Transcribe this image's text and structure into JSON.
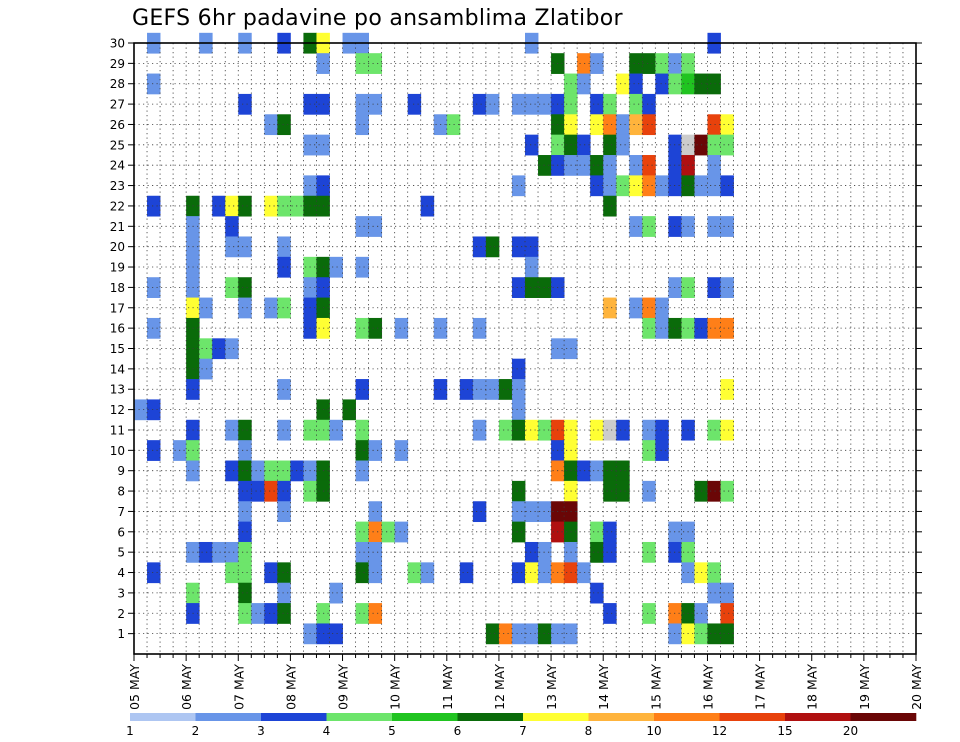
{
  "chart_data": {
    "type": "heatmap",
    "title": "GEFS 6hr padavine po ansamblima Zlatibor",
    "xlabel": "",
    "ylabel": "",
    "x_ticks": [
      "05 MAY",
      "06 MAY",
      "07 MAY",
      "08 MAY",
      "09 MAY",
      "10 MAY",
      "11 MAY",
      "12 MAY",
      "13 MAY",
      "14 MAY",
      "15 MAY",
      "16 MAY",
      "17 MAY",
      "18 MAY",
      "19 MAY",
      "20 MAY"
    ],
    "y_ticks": [
      1,
      2,
      3,
      4,
      5,
      6,
      7,
      8,
      9,
      10,
      11,
      12,
      13,
      14,
      15,
      16,
      17,
      18,
      19,
      20,
      21,
      22,
      23,
      24,
      25,
      26,
      27,
      28,
      29,
      30
    ],
    "ylim": [
      0,
      30
    ],
    "steps_per_day": 4,
    "grid": "dotted",
    "colorbar": {
      "position": "bottom",
      "labels": [
        "1",
        "2",
        "3",
        "4",
        "5",
        "6",
        "7",
        "8",
        "10",
        "12",
        "15",
        "20"
      ],
      "colors": [
        "#aec6f2",
        "#6895e8",
        "#1d44d6",
        "#6de56b",
        "#20c420",
        "#0a6b0a",
        "#ffff33",
        "#ffb43c",
        "#ff7f18",
        "#e8420c",
        "#b01010",
        "#6a0606"
      ]
    },
    "cells": [
      [
        1,
        30,
        1
      ],
      [
        5,
        30,
        1
      ],
      [
        8,
        30,
        1
      ],
      [
        11,
        30,
        2
      ],
      [
        13,
        30,
        5
      ],
      [
        14,
        30,
        6
      ],
      [
        16,
        30,
        1
      ],
      [
        17,
        30,
        1
      ],
      [
        30,
        30,
        1
      ],
      [
        44,
        30,
        2
      ],
      [
        14,
        29,
        1
      ],
      [
        17,
        29,
        3
      ],
      [
        18,
        29,
        3
      ],
      [
        32,
        29,
        5
      ],
      [
        34,
        29,
        8
      ],
      [
        35,
        29,
        1
      ],
      [
        38,
        29,
        5
      ],
      [
        39,
        29,
        5
      ],
      [
        40,
        29,
        3
      ],
      [
        41,
        29,
        1
      ],
      [
        42,
        29,
        3
      ],
      [
        1,
        28,
        1
      ],
      [
        33,
        28,
        3
      ],
      [
        34,
        28,
        1
      ],
      [
        37,
        28,
        6
      ],
      [
        38,
        28,
        2
      ],
      [
        40,
        28,
        2
      ],
      [
        41,
        28,
        3
      ],
      [
        42,
        28,
        4
      ],
      [
        43,
        28,
        5
      ],
      [
        44,
        28,
        5
      ],
      [
        8,
        27,
        2
      ],
      [
        13,
        27,
        2
      ],
      [
        14,
        27,
        2
      ],
      [
        17,
        27,
        1
      ],
      [
        18,
        27,
        1
      ],
      [
        21,
        27,
        2
      ],
      [
        26,
        27,
        2
      ],
      [
        27,
        27,
        1
      ],
      [
        29,
        27,
        1
      ],
      [
        30,
        27,
        1
      ],
      [
        31,
        27,
        1
      ],
      [
        32,
        27,
        2
      ],
      [
        33,
        27,
        3
      ],
      [
        35,
        27,
        2
      ],
      [
        36,
        27,
        3
      ],
      [
        38,
        27,
        3
      ],
      [
        39,
        27,
        2
      ],
      [
        10,
        26,
        1
      ],
      [
        11,
        26,
        5
      ],
      [
        17,
        26,
        1
      ],
      [
        23,
        26,
        1
      ],
      [
        24,
        26,
        3
      ],
      [
        32,
        26,
        5
      ],
      [
        33,
        26,
        6
      ],
      [
        35,
        26,
        6
      ],
      [
        36,
        26,
        8
      ],
      [
        37,
        26,
        1
      ],
      [
        38,
        26,
        7
      ],
      [
        39,
        26,
        9
      ],
      [
        44,
        26,
        9
      ],
      [
        45,
        26,
        6
      ],
      [
        13,
        25,
        1
      ],
      [
        14,
        25,
        1
      ],
      [
        30,
        25,
        2
      ],
      [
        32,
        25,
        3
      ],
      [
        33,
        25,
        5
      ],
      [
        34,
        25,
        2
      ],
      [
        36,
        25,
        5
      ],
      [
        37,
        25,
        1
      ],
      [
        41,
        25,
        2
      ],
      [
        42,
        25,
        12
      ],
      [
        43,
        25,
        11
      ],
      [
        44,
        25,
        3
      ],
      [
        45,
        25,
        3
      ],
      [
        31,
        24,
        5
      ],
      [
        32,
        24,
        2
      ],
      [
        33,
        24,
        1
      ],
      [
        34,
        24,
        1
      ],
      [
        35,
        24,
        5
      ],
      [
        36,
        24,
        1
      ],
      [
        38,
        24,
        1
      ],
      [
        39,
        24,
        9
      ],
      [
        41,
        24,
        2
      ],
      [
        42,
        24,
        10
      ],
      [
        44,
        24,
        1
      ],
      [
        13,
        23,
        1
      ],
      [
        14,
        23,
        2
      ],
      [
        29,
        23,
        1
      ],
      [
        35,
        23,
        2
      ],
      [
        36,
        23,
        1
      ],
      [
        37,
        23,
        3
      ],
      [
        38,
        23,
        6
      ],
      [
        39,
        23,
        8
      ],
      [
        40,
        23,
        1
      ],
      [
        41,
        23,
        2
      ],
      [
        42,
        23,
        5
      ],
      [
        43,
        23,
        1
      ],
      [
        44,
        23,
        1
      ],
      [
        45,
        23,
        2
      ],
      [
        1,
        22,
        2
      ],
      [
        4,
        22,
        5
      ],
      [
        6,
        22,
        2
      ],
      [
        7,
        22,
        6
      ],
      [
        8,
        22,
        5
      ],
      [
        10,
        22,
        6
      ],
      [
        11,
        22,
        3
      ],
      [
        12,
        22,
        3
      ],
      [
        13,
        22,
        5
      ],
      [
        14,
        22,
        5
      ],
      [
        22,
        22,
        2
      ],
      [
        36,
        22,
        5
      ],
      [
        4,
        21,
        1
      ],
      [
        7,
        21,
        2
      ],
      [
        17,
        21,
        1
      ],
      [
        18,
        21,
        1
      ],
      [
        38,
        21,
        1
      ],
      [
        39,
        21,
        3
      ],
      [
        41,
        21,
        2
      ],
      [
        42,
        21,
        1
      ],
      [
        44,
        21,
        1
      ],
      [
        45,
        21,
        1
      ],
      [
        4,
        20,
        1
      ],
      [
        7,
        20,
        1
      ],
      [
        8,
        20,
        1
      ],
      [
        11,
        20,
        1
      ],
      [
        26,
        20,
        2
      ],
      [
        27,
        20,
        5
      ],
      [
        29,
        20,
        2
      ],
      [
        30,
        20,
        2
      ],
      [
        4,
        19,
        1
      ],
      [
        11,
        19,
        2
      ],
      [
        13,
        19,
        3
      ],
      [
        14,
        19,
        5
      ],
      [
        15,
        19,
        1
      ],
      [
        17,
        19,
        1
      ],
      [
        30,
        19,
        1
      ],
      [
        1,
        18,
        1
      ],
      [
        4,
        18,
        1
      ],
      [
        7,
        18,
        3
      ],
      [
        8,
        18,
        5
      ],
      [
        13,
        18,
        1
      ],
      [
        14,
        18,
        2
      ],
      [
        29,
        18,
        2
      ],
      [
        30,
        18,
        5
      ],
      [
        31,
        18,
        5
      ],
      [
        32,
        18,
        2
      ],
      [
        41,
        18,
        1
      ],
      [
        42,
        18,
        3
      ],
      [
        44,
        18,
        2
      ],
      [
        45,
        18,
        1
      ],
      [
        4,
        17,
        6
      ],
      [
        5,
        17,
        1
      ],
      [
        8,
        17,
        1
      ],
      [
        10,
        17,
        1
      ],
      [
        11,
        17,
        3
      ],
      [
        13,
        17,
        2
      ],
      [
        14,
        17,
        5
      ],
      [
        36,
        17,
        7
      ],
      [
        38,
        17,
        1
      ],
      [
        39,
        17,
        8
      ],
      [
        40,
        17,
        1
      ],
      [
        1,
        16,
        1
      ],
      [
        4,
        16,
        5
      ],
      [
        13,
        16,
        2
      ],
      [
        14,
        16,
        6
      ],
      [
        17,
        16,
        3
      ],
      [
        18,
        16,
        5
      ],
      [
        20,
        16,
        1
      ],
      [
        23,
        16,
        1
      ],
      [
        26,
        16,
        1
      ],
      [
        39,
        16,
        3
      ],
      [
        40,
        16,
        1
      ],
      [
        41,
        16,
        5
      ],
      [
        42,
        16,
        3
      ],
      [
        43,
        16,
        2
      ],
      [
        44,
        16,
        8
      ],
      [
        45,
        16,
        8
      ],
      [
        4,
        15,
        5
      ],
      [
        5,
        15,
        3
      ],
      [
        6,
        15,
        2
      ],
      [
        7,
        15,
        1
      ],
      [
        32,
        15,
        1
      ],
      [
        33,
        15,
        1
      ],
      [
        4,
        14,
        5
      ],
      [
        5,
        14,
        1
      ],
      [
        29,
        14,
        2
      ],
      [
        4,
        13,
        2
      ],
      [
        11,
        13,
        1
      ],
      [
        17,
        13,
        2
      ],
      [
        23,
        13,
        2
      ],
      [
        25,
        13,
        2
      ],
      [
        26,
        13,
        1
      ],
      [
        27,
        13,
        1
      ],
      [
        28,
        13,
        5
      ],
      [
        29,
        13,
        1
      ],
      [
        45,
        13,
        6
      ],
      [
        0,
        12,
        1
      ],
      [
        1,
        12,
        2
      ],
      [
        14,
        12,
        5
      ],
      [
        16,
        12,
        5
      ],
      [
        29,
        12,
        1
      ],
      [
        4,
        11,
        2
      ],
      [
        7,
        11,
        1
      ],
      [
        8,
        11,
        5
      ],
      [
        11,
        11,
        1
      ],
      [
        13,
        11,
        3
      ],
      [
        14,
        11,
        3
      ],
      [
        15,
        11,
        1
      ],
      [
        17,
        11,
        3
      ],
      [
        26,
        11,
        1
      ],
      [
        28,
        11,
        3
      ],
      [
        29,
        11,
        5
      ],
      [
        30,
        11,
        6
      ],
      [
        31,
        11,
        3
      ],
      [
        32,
        11,
        9
      ],
      [
        33,
        11,
        6
      ],
      [
        35,
        11,
        6
      ],
      [
        36,
        11,
        13
      ],
      [
        37,
        11,
        2
      ],
      [
        39,
        11,
        1
      ],
      [
        40,
        11,
        2
      ],
      [
        42,
        11,
        2
      ],
      [
        44,
        11,
        3
      ],
      [
        45,
        11,
        6
      ],
      [
        1,
        10,
        2
      ],
      [
        3,
        10,
        1
      ],
      [
        4,
        10,
        3
      ],
      [
        8,
        10,
        1
      ],
      [
        17,
        10,
        5
      ],
      [
        18,
        10,
        1
      ],
      [
        20,
        10,
        1
      ],
      [
        32,
        10,
        2
      ],
      [
        33,
        10,
        6
      ],
      [
        39,
        10,
        3
      ],
      [
        40,
        10,
        2
      ],
      [
        4,
        9,
        1
      ],
      [
        7,
        9,
        2
      ],
      [
        8,
        9,
        5
      ],
      [
        9,
        9,
        1
      ],
      [
        10,
        9,
        3
      ],
      [
        11,
        9,
        3
      ],
      [
        12,
        9,
        2
      ],
      [
        13,
        9,
        1
      ],
      [
        14,
        9,
        5
      ],
      [
        17,
        9,
        1
      ],
      [
        32,
        9,
        8
      ],
      [
        33,
        9,
        5
      ],
      [
        34,
        9,
        2
      ],
      [
        35,
        9,
        1
      ],
      [
        36,
        9,
        5
      ],
      [
        37,
        9,
        5
      ],
      [
        8,
        8,
        2
      ],
      [
        9,
        8,
        2
      ],
      [
        10,
        8,
        9
      ],
      [
        11,
        8,
        2
      ],
      [
        13,
        8,
        3
      ],
      [
        14,
        8,
        5
      ],
      [
        29,
        8,
        5
      ],
      [
        33,
        8,
        6
      ],
      [
        36,
        8,
        5
      ],
      [
        37,
        8,
        5
      ],
      [
        39,
        8,
        1
      ],
      [
        43,
        8,
        5
      ],
      [
        44,
        8,
        11
      ],
      [
        45,
        8,
        3
      ],
      [
        8,
        7,
        1
      ],
      [
        11,
        7,
        1
      ],
      [
        18,
        7,
        1
      ],
      [
        26,
        7,
        2
      ],
      [
        29,
        7,
        1
      ],
      [
        30,
        7,
        1
      ],
      [
        31,
        7,
        1
      ],
      [
        32,
        7,
        11
      ],
      [
        33,
        7,
        11
      ],
      [
        8,
        6,
        2
      ],
      [
        17,
        6,
        3
      ],
      [
        18,
        6,
        8
      ],
      [
        19,
        6,
        3
      ],
      [
        20,
        6,
        1
      ],
      [
        29,
        6,
        5
      ],
      [
        32,
        6,
        10
      ],
      [
        33,
        6,
        5
      ],
      [
        35,
        6,
        3
      ],
      [
        36,
        6,
        2
      ],
      [
        41,
        6,
        1
      ],
      [
        42,
        6,
        1
      ],
      [
        4,
        5,
        1
      ],
      [
        5,
        5,
        2
      ],
      [
        6,
        5,
        1
      ],
      [
        7,
        5,
        1
      ],
      [
        8,
        5,
        3
      ],
      [
        17,
        5,
        1
      ],
      [
        18,
        5,
        1
      ],
      [
        30,
        5,
        2
      ],
      [
        31,
        5,
        1
      ],
      [
        33,
        5,
        1
      ],
      [
        35,
        5,
        5
      ],
      [
        36,
        5,
        2
      ],
      [
        39,
        5,
        3
      ],
      [
        41,
        5,
        2
      ],
      [
        42,
        5,
        3
      ],
      [
        1,
        4,
        2
      ],
      [
        7,
        4,
        3
      ],
      [
        8,
        4,
        3
      ],
      [
        10,
        4,
        2
      ],
      [
        11,
        4,
        5
      ],
      [
        17,
        4,
        5
      ],
      [
        18,
        4,
        1
      ],
      [
        21,
        4,
        3
      ],
      [
        22,
        4,
        1
      ],
      [
        25,
        4,
        2
      ],
      [
        29,
        4,
        2
      ],
      [
        30,
        4,
        6
      ],
      [
        31,
        4,
        1
      ],
      [
        32,
        4,
        8
      ],
      [
        33,
        4,
        9
      ],
      [
        34,
        4,
        1
      ],
      [
        42,
        4,
        1
      ],
      [
        43,
        4,
        6
      ],
      [
        44,
        4,
        3
      ],
      [
        4,
        3,
        3
      ],
      [
        8,
        3,
        5
      ],
      [
        11,
        3,
        1
      ],
      [
        15,
        3,
        1
      ],
      [
        35,
        3,
        2
      ],
      [
        44,
        3,
        1
      ],
      [
        45,
        3,
        1
      ],
      [
        4,
        2,
        2
      ],
      [
        8,
        2,
        3
      ],
      [
        9,
        2,
        1
      ],
      [
        10,
        2,
        2
      ],
      [
        11,
        2,
        5
      ],
      [
        14,
        2,
        3
      ],
      [
        17,
        2,
        3
      ],
      [
        18,
        2,
        8
      ],
      [
        36,
        2,
        2
      ],
      [
        39,
        2,
        3
      ],
      [
        41,
        2,
        8
      ],
      [
        42,
        2,
        5
      ],
      [
        43,
        2,
        1
      ],
      [
        45,
        2,
        9
      ],
      [
        13,
        1,
        1
      ],
      [
        14,
        1,
        2
      ],
      [
        15,
        1,
        2
      ],
      [
        27,
        1,
        5
      ],
      [
        28,
        1,
        8
      ],
      [
        29,
        1,
        1
      ],
      [
        30,
        1,
        1
      ],
      [
        31,
        1,
        5
      ],
      [
        32,
        1,
        1
      ],
      [
        33,
        1,
        1
      ],
      [
        41,
        1,
        1
      ],
      [
        42,
        1,
        6
      ],
      [
        43,
        1,
        3
      ],
      [
        44,
        1,
        5
      ],
      [
        45,
        1,
        5
      ]
    ]
  }
}
